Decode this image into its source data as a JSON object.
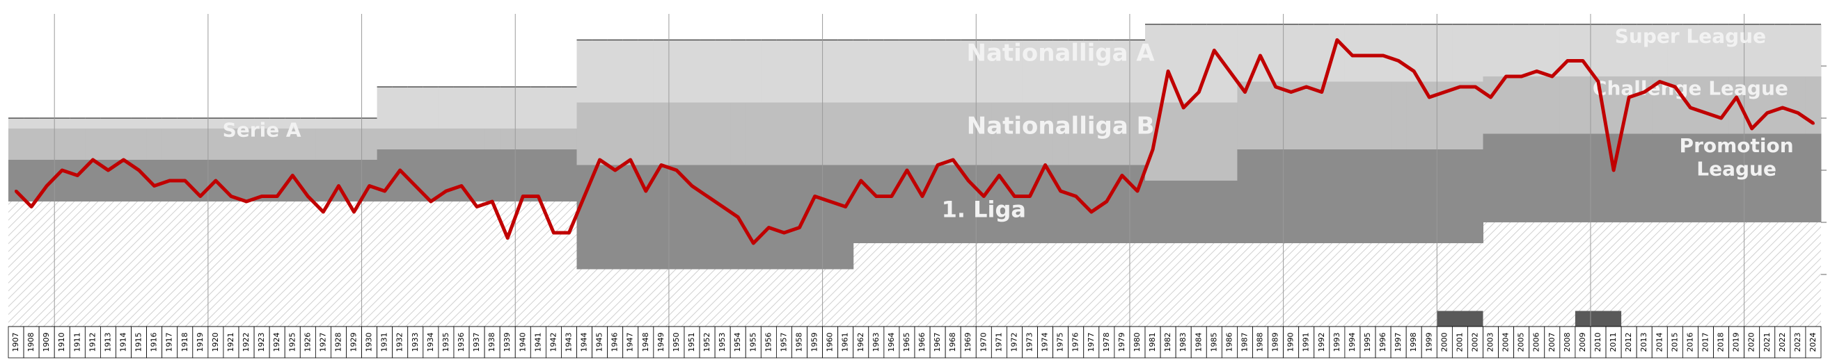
{
  "chart_data": {
    "type": "line",
    "title": "",
    "xlabel": "",
    "ylabel": "",
    "colors": {
      "line": "#c00000",
      "super_league_band": "#d9d9d9",
      "second_tier_band": "#bfbfbf",
      "third_tier_band": "#8c8c8c",
      "fourth_tier_band": "#595959",
      "amateur_hatch": "#e0e0e0"
    },
    "league_labels": [
      {
        "text": "Nationalliga A",
        "tier": 1
      },
      {
        "text": "Super League",
        "tier": 1
      },
      {
        "text": "Serie A",
        "tier": 2
      },
      {
        "text": "Nationalliga B",
        "tier": 2
      },
      {
        "text": "Challenge League",
        "tier": 2
      },
      {
        "text": "1. Liga",
        "tier": 3
      },
      {
        "text": "Promotion",
        "tier": 3
      },
      {
        "text": "League",
        "tier": 3
      }
    ],
    "x": [
      1907,
      1908,
      1909,
      1910,
      1911,
      1912,
      1913,
      1914,
      1915,
      1916,
      1917,
      1918,
      1919,
      1920,
      1921,
      1922,
      1923,
      1924,
      1925,
      1926,
      1927,
      1928,
      1929,
      1930,
      1931,
      1932,
      1933,
      1934,
      1935,
      1936,
      1937,
      1938,
      1939,
      1940,
      1941,
      1942,
      1943,
      1944,
      1945,
      1946,
      1947,
      1948,
      1949,
      1950,
      1951,
      1952,
      1953,
      1954,
      1955,
      1956,
      1957,
      1958,
      1959,
      1960,
      1961,
      1962,
      1963,
      1964,
      1965,
      1966,
      1967,
      1968,
      1969,
      1970,
      1971,
      1972,
      1973,
      1974,
      1975,
      1976,
      1977,
      1978,
      1979,
      1980,
      1981,
      1982,
      1983,
      1984,
      1985,
      1986,
      1987,
      1988,
      1989,
      1990,
      1991,
      1992,
      1993,
      1994,
      1995,
      1996,
      1997,
      1998,
      1999,
      2000,
      2001,
      2002,
      2003,
      2004,
      2005,
      2006,
      2007,
      2008,
      2009,
      2010,
      2011,
      2012,
      2013,
      2014,
      2015,
      2016,
      2017,
      2018,
      2019,
      2020,
      2021,
      2022,
      2023,
      2024
    ],
    "series": [
      {
        "values": [
          3.4,
          3.7,
          3.3,
          3.0,
          3.1,
          2.8,
          3.0,
          2.8,
          3.0,
          3.3,
          3.2,
          3.2,
          3.5,
          3.2,
          3.5,
          3.6,
          3.5,
          3.5,
          3.1,
          3.5,
          3.8,
          3.3,
          3.8,
          3.3,
          3.4,
          3.0,
          3.3,
          3.6,
          3.4,
          3.3,
          3.7,
          3.6,
          4.3,
          3.5,
          3.5,
          4.2,
          4.2,
          3.5,
          2.8,
          3.0,
          2.8,
          3.4,
          2.9,
          3.0,
          3.3,
          3.5,
          3.7,
          3.9,
          4.4,
          4.1,
          4.2,
          4.1,
          3.5,
          3.6,
          3.7,
          3.2,
          3.5,
          3.5,
          3.0,
          3.5,
          2.9,
          2.8,
          3.2,
          3.5,
          3.1,
          3.5,
          3.5,
          2.9,
          3.4,
          3.5,
          3.8,
          3.6,
          3.1,
          3.4,
          2.6,
          1.1,
          1.8,
          1.5,
          0.7,
          1.1,
          1.5,
          0.8,
          1.4,
          1.5,
          1.4,
          1.5,
          0.5,
          0.8,
          0.8,
          0.8,
          0.9,
          1.1,
          1.6,
          1.5,
          1.4,
          1.4,
          1.6,
          1.2,
          1.2,
          1.1,
          1.2,
          0.9,
          0.9,
          1.3,
          3.0,
          1.6,
          1.5,
          1.3,
          1.4,
          1.8,
          1.9,
          2.0,
          1.6,
          2.2,
          1.9,
          1.8,
          1.9,
          2.1
        ]
      }
    ],
    "x_ticks": [
      "1907",
      "1908",
      "1909",
      "1910",
      "1911",
      "1912",
      "1913",
      "1914",
      "1915",
      "1916",
      "1917",
      "1918",
      "1919",
      "1920",
      "1921",
      "1922",
      "1923",
      "1924",
      "1925",
      "1926",
      "1927",
      "1928",
      "1929",
      "1930",
      "1931",
      "1932",
      "1933",
      "1934",
      "1935",
      "1936",
      "1937",
      "1938",
      "1939",
      "1940",
      "1941",
      "1942",
      "1943",
      "1944",
      "1945",
      "1946",
      "1947",
      "1948",
      "1949",
      "1950",
      "1951",
      "1952",
      "1953",
      "1954",
      "1955",
      "1956",
      "1957",
      "1958",
      "1959",
      "1960",
      "1961",
      "1962",
      "1963",
      "1964",
      "1965",
      "1966",
      "1967",
      "1968",
      "1969",
      "1970",
      "1971",
      "1972",
      "1973",
      "1974",
      "1975",
      "1976",
      "1977",
      "1978",
      "1979",
      "1980",
      "1981",
      "1982",
      "1983",
      "1984",
      "1985",
      "1986",
      "1987",
      "1988",
      "1989",
      "1990",
      "1991",
      "1992",
      "1993",
      "1994",
      "1995",
      "1996",
      "1997",
      "1998",
      "1999",
      "2000",
      "2001",
      "2002",
      "2003",
      "2004",
      "2005",
      "2006",
      "2007",
      "2008",
      "2009",
      "2010",
      "2011",
      "2012",
      "2013",
      "2014",
      "2015",
      "2016",
      "2017",
      "2018",
      "2019",
      "2020",
      "2021",
      "2022",
      "2023",
      "2024"
    ],
    "ylim": [
      0,
      6
    ],
    "grid": true,
    "legend": "none"
  }
}
